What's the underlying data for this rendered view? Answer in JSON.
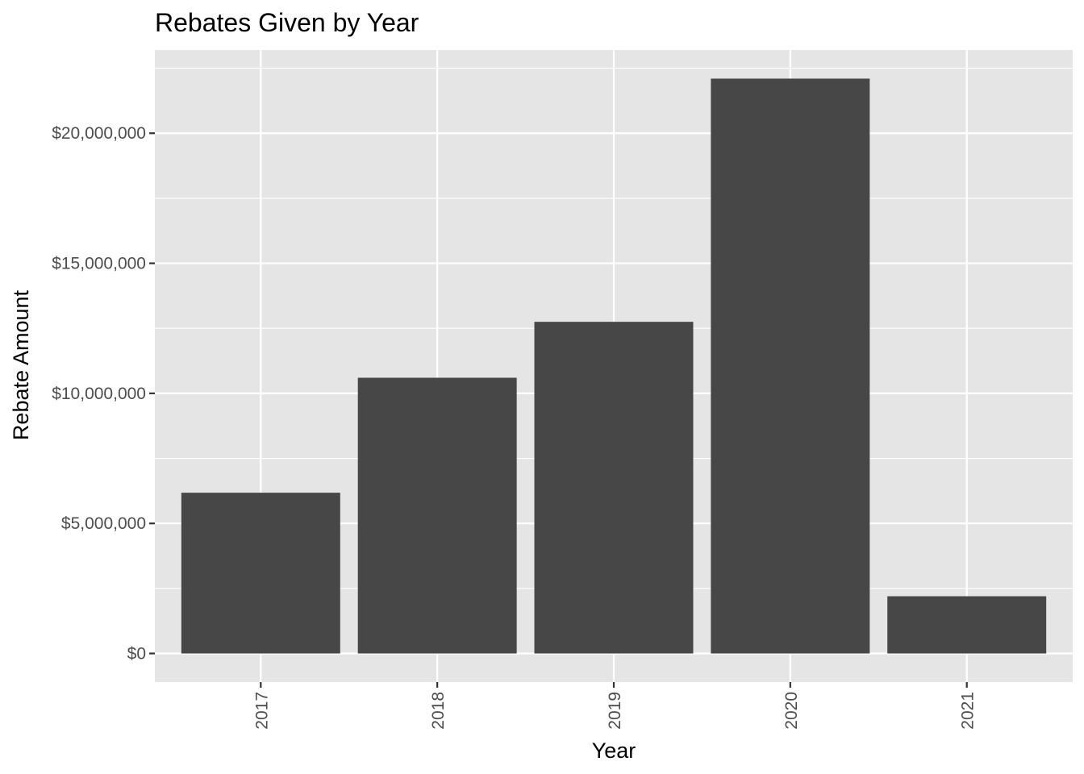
{
  "chart_data": {
    "type": "bar",
    "title": "Rebates Given by Year",
    "xlabel": "Year",
    "ylabel": "Rebate Amount",
    "categories": [
      "2017",
      "2018",
      "2019",
      "2020",
      "2021"
    ],
    "values": [
      6180000,
      10600000,
      12750000,
      22100000,
      2200000
    ],
    "yticks": [
      0,
      5000000,
      10000000,
      15000000,
      20000000
    ],
    "ytick_labels": [
      "$0",
      "$5,000,000",
      "$10,000,000",
      "$15,000,000",
      "$20,000,000"
    ],
    "ylim": [
      -1100000,
      23200000
    ],
    "grid": true,
    "legend": "none",
    "colors": {
      "bar": "#474747",
      "panel": "#e5e5e5",
      "grid": "#ffffff"
    }
  }
}
